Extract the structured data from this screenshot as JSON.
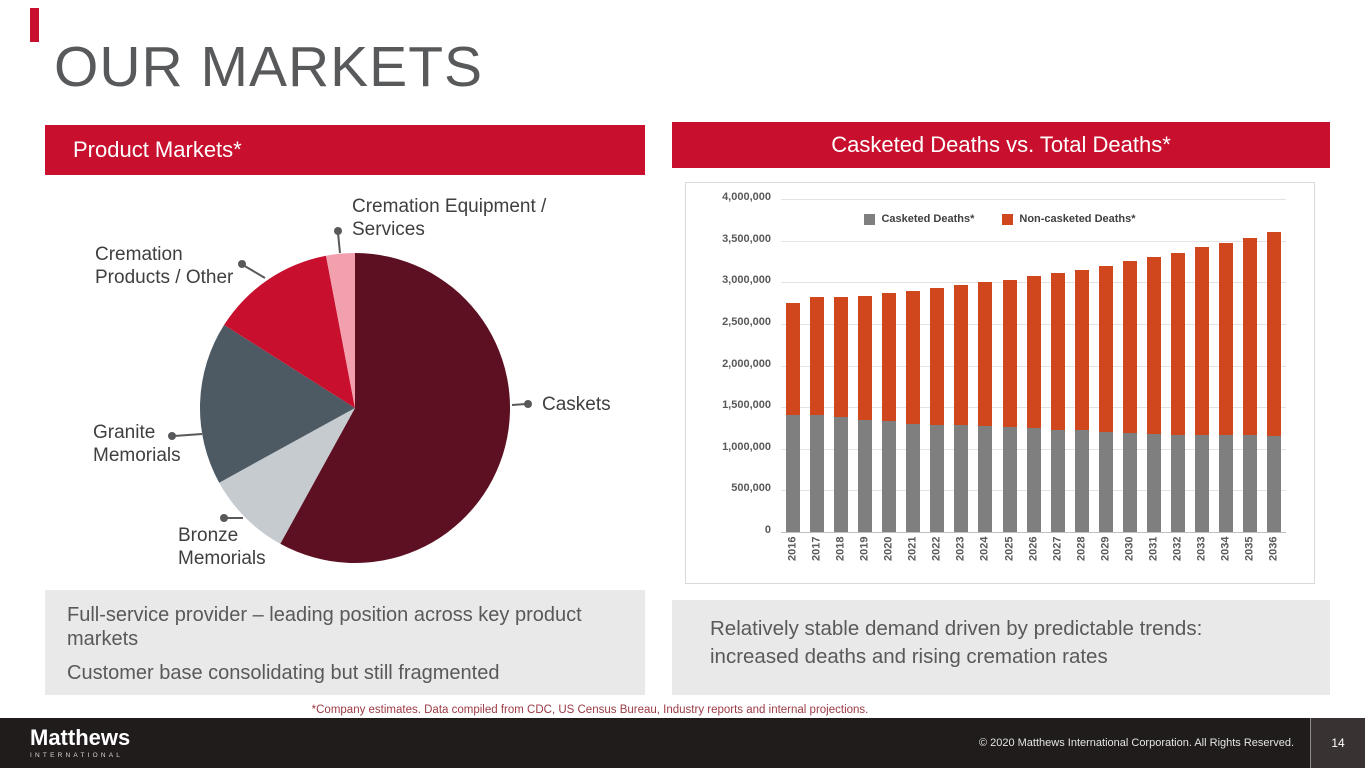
{
  "slide": {
    "title": "OUR MARKETS",
    "footnote": "*Company estimates. Data compiled from CDC, US Census Bureau, Industry reports and internal projections."
  },
  "left_panel": {
    "header": "Product Markets*",
    "notes": [
      "Full-service provider – leading position across key product markets",
      "Customer base consolidating but still fragmented"
    ]
  },
  "right_panel": {
    "header": "Casketed Deaths vs. Total Deaths*",
    "note": "Relatively stable demand driven by predictable trends: increased deaths and rising cremation rates"
  },
  "footer": {
    "logo_text": "Matthews",
    "logo_subtext": "INTERNATIONAL",
    "copyright": "© 2020 Matthews International Corporation. All Rights Reserved.",
    "page_number": "14"
  },
  "colors": {
    "brand_red": "#C8102E",
    "title_gray": "#58595B",
    "note_box_gray": "#E9E9E9",
    "footer_dark": "#201C1C",
    "footnote_red": "#9C3A44"
  },
  "chart_data": [
    {
      "type": "pie",
      "title": "Product Markets*",
      "unit": "%",
      "slices": [
        {
          "label": "Caskets",
          "value": 58,
          "color": "#5C1022"
        },
        {
          "label": "Bronze Memorials",
          "value": 9,
          "color": "#C6CBD0"
        },
        {
          "label": "Granite Memorials",
          "value": 17,
          "color": "#4D5A64"
        },
        {
          "label": "Cremation Products / Other",
          "value": 13,
          "color": "#C8102E"
        },
        {
          "label": "Cremation Equipment / Services",
          "value": 3,
          "color": "#F2A0AE"
        }
      ]
    },
    {
      "type": "stacked-bar",
      "title": "Casketed Deaths vs. Total Deaths*",
      "categories": [
        "2016",
        "2017",
        "2018",
        "2019",
        "2020",
        "2021",
        "2022",
        "2023",
        "2024",
        "2025",
        "2026",
        "2027",
        "2028",
        "2029",
        "2030",
        "2031",
        "2032",
        "2033",
        "2034",
        "2035",
        "2036"
      ],
      "series": [
        {
          "name": "Casketed Deaths*",
          "color": "#7F7F7F",
          "values": [
            1400000,
            1400000,
            1380000,
            1350000,
            1330000,
            1300000,
            1290000,
            1280000,
            1270000,
            1260000,
            1250000,
            1230000,
            1220000,
            1200000,
            1190000,
            1180000,
            1170000,
            1170000,
            1160000,
            1160000,
            1150000
          ]
        },
        {
          "name": "Non-casketed Deaths*",
          "color": "#D1471D",
          "values": [
            1350000,
            1420000,
            1440000,
            1490000,
            1540000,
            1600000,
            1640000,
            1690000,
            1730000,
            1770000,
            1820000,
            1880000,
            1930000,
            2000000,
            2070000,
            2120000,
            2180000,
            2250000,
            2310000,
            2370000,
            2450000
          ]
        }
      ],
      "ylim": [
        0,
        4000000
      ],
      "ytick_interval": 500000,
      "grid": true,
      "legend_position": "top"
    }
  ]
}
